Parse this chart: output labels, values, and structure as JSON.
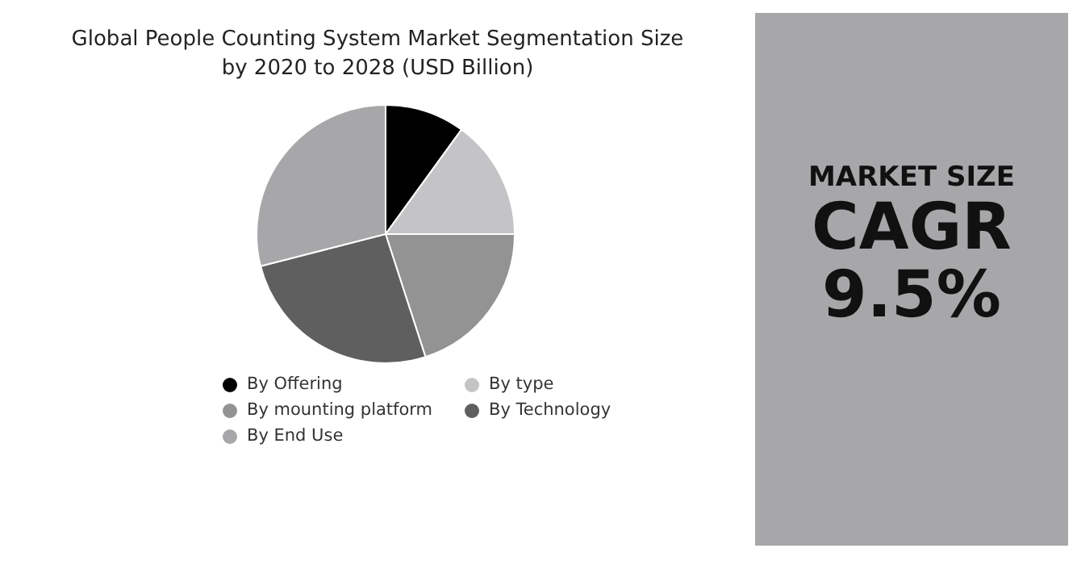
{
  "chart_data": [
    {
      "type": "pie",
      "title": "Global People Counting System Market Segmentation Size by 2020 to 2028 (USD Billion)",
      "categories": [
        "By Offering",
        "By type",
        "By mounting platform",
        "By Technology",
        "By End Use"
      ],
      "values": [
        10,
        15,
        20,
        26,
        29
      ],
      "colors": [
        "#000000",
        "#c4c4c6",
        "#939393",
        "#5f5f5f",
        "#a7a7a9"
      ],
      "legend": "bottom"
    },
    {
      "type": "other",
      "annotations": [
        "MARKET SIZE",
        "CAGR",
        "9.5%"
      ]
    }
  ]
}
